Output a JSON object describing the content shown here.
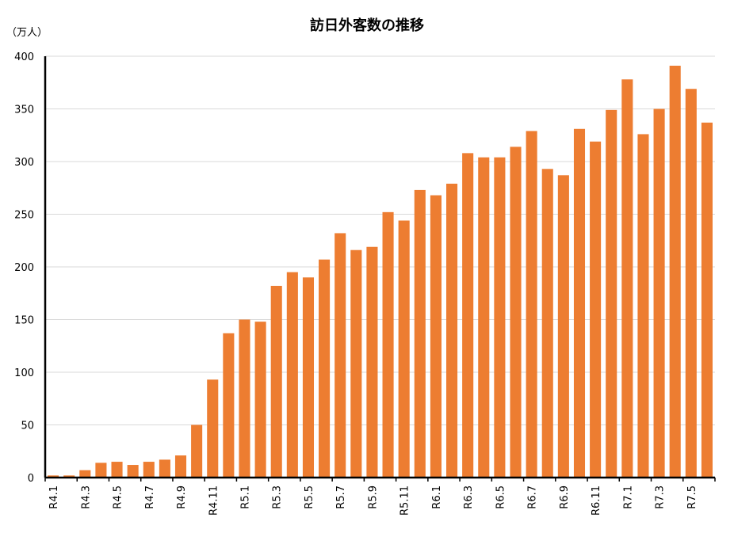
{
  "chart_data": {
    "type": "bar",
    "title": "訪日外客数の推移",
    "y_label": "（万人）",
    "categories": [
      "R4.1",
      null,
      "R4.3",
      null,
      "R4.5",
      null,
      "R4.7",
      null,
      "R4.9",
      null,
      "R4.11",
      null,
      "R5.1",
      null,
      "R5.3",
      null,
      "R5.5",
      null,
      "R5.7",
      null,
      "R5.9",
      null,
      "R5.11",
      null,
      "R6.1",
      null,
      "R6.3",
      null,
      "R6.5",
      null,
      "R6.7",
      null,
      "R6.9",
      null,
      "R6.11",
      null,
      "R7.1",
      null,
      "R7.3",
      null,
      "R7.5",
      null
    ],
    "values": [
      2,
      2,
      7,
      14,
      15,
      12,
      15,
      17,
      21,
      50,
      93,
      137,
      150,
      148,
      182,
      195,
      190,
      207,
      232,
      216,
      219,
      252,
      244,
      273,
      268,
      279,
      308,
      304,
      304,
      314,
      329,
      293,
      287,
      331,
      319,
      349,
      378,
      326,
      350,
      391,
      369,
      337
    ],
    "color": "#ed7d31",
    "ylim": [
      0,
      400
    ],
    "yticks": [
      0,
      50,
      100,
      150,
      200,
      250,
      300,
      350,
      400
    ],
    "grid": true
  }
}
